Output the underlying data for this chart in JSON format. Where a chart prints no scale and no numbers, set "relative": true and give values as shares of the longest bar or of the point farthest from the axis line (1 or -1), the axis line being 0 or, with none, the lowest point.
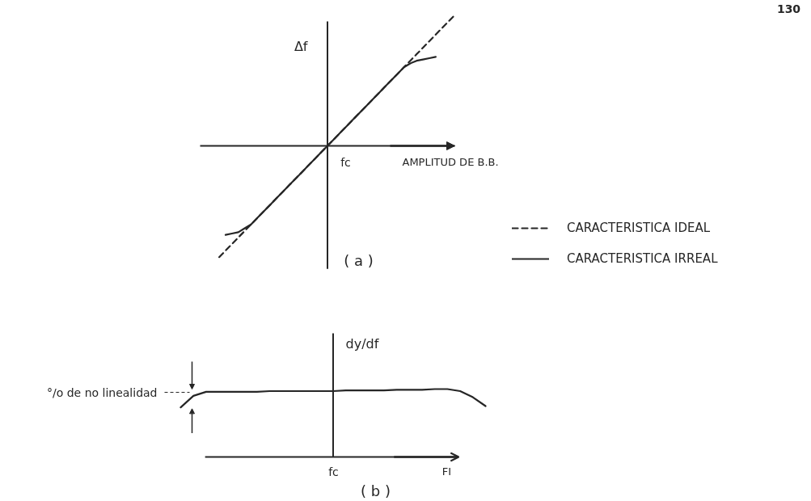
{
  "chart_data": [
    {
      "type": "line",
      "title": "( a )",
      "xlabel": "AMPLITUD DE B.B.",
      "ylabel": "Δf",
      "relative": true,
      "legend": "right",
      "annotations": [
        "130",
        "fc"
      ],
      "categories": [
        null,
        null,
        null,
        null,
        null,
        null,
        null,
        null,
        null,
        null,
        null,
        null,
        null,
        null,
        null,
        null,
        null,
        null,
        null,
        null,
        null,
        null,
        null,
        null,
        null,
        null,
        null,
        null,
        null,
        null,
        null,
        null,
        null,
        null,
        null,
        null,
        null,
        null,
        null,
        null,
        null
      ],
      "series": [
        {
          "name": "CARACTERISTICA IDEAL",
          "color": "#262626",
          "line_style": "dashed",
          "values": [
            null,
            null,
            null,
            -0.85,
            -0.8,
            -0.75,
            -0.7,
            -0.65,
            -0.6,
            -0.55,
            -0.5,
            -0.45,
            -0.4,
            -0.35,
            -0.3,
            -0.25,
            -0.2,
            -0.15,
            -0.1,
            -0.05,
            0,
            0.05,
            0.1,
            0.15,
            0.2,
            0.25,
            0.3,
            0.35,
            0.4,
            0.45,
            0.5,
            0.55,
            0.6,
            0.65,
            0.7,
            0.75,
            0.8,
            0.85,
            0.9,
            0.95,
            1.0
          ]
        },
        {
          "name": "CARACTERISTICA IRREAL",
          "color": "#262626",
          "line_style": "solid",
          "values": [
            null,
            null,
            null,
            null,
            -0.68,
            -0.67,
            -0.66,
            -0.63,
            -0.6,
            -0.55,
            -0.5,
            -0.45,
            -0.4,
            -0.35,
            -0.3,
            -0.25,
            -0.2,
            -0.15,
            -0.1,
            -0.05,
            0,
            0.05,
            0.1,
            0.15,
            0.2,
            0.25,
            0.3,
            0.35,
            0.4,
            0.45,
            0.5,
            0.55,
            0.6,
            0.63,
            0.65,
            0.66,
            0.67,
            0.68,
            null,
            null,
            null
          ]
        }
      ]
    },
    {
      "type": "line",
      "title": "( b )",
      "xlabel": "FI",
      "ylabel": "dy/df",
      "relative": true,
      "color": "#262626",
      "annotations": [
        "°/o de no linealidad",
        "fc"
      ],
      "categories": [
        null,
        null,
        null,
        null,
        null,
        null,
        null,
        null,
        null,
        null,
        null,
        null,
        null,
        null,
        null,
        null,
        null,
        null,
        null,
        null,
        null,
        null,
        null,
        null,
        null
      ],
      "values": [
        0.73,
        0.9,
        0.96,
        0.96,
        0.96,
        0.96,
        0.96,
        0.97,
        0.97,
        0.97,
        0.97,
        0.97,
        0.97,
        0.98,
        0.98,
        0.98,
        0.98,
        0.99,
        0.99,
        0.99,
        1.0,
        1.0,
        0.97,
        0.88,
        0.75
      ]
    }
  ]
}
